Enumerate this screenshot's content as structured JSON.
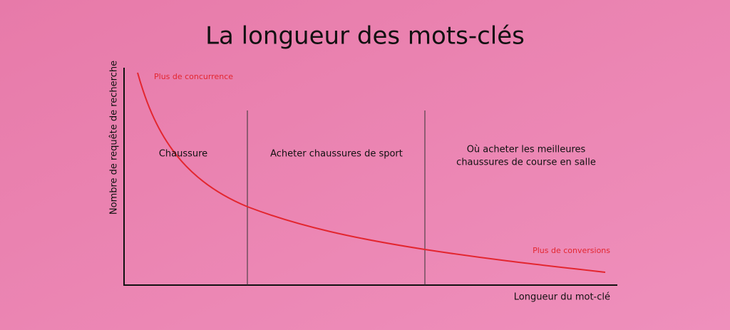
{
  "title": "La longueur des mots-clés",
  "y_axis_label": "Nombre de requête de recherche",
  "x_axis_label": "Longueur du mot-clé",
  "annotations": {
    "top": "Plus de concurrence",
    "bottom": "Plus de conversions"
  },
  "sections": [
    {
      "lines": [
        "Chaussure"
      ]
    },
    {
      "lines": [
        "Acheter chaussures de sport"
      ]
    },
    {
      "lines": [
        "Où acheter les meilleures",
        "chaussures de course en salle"
      ]
    }
  ]
}
